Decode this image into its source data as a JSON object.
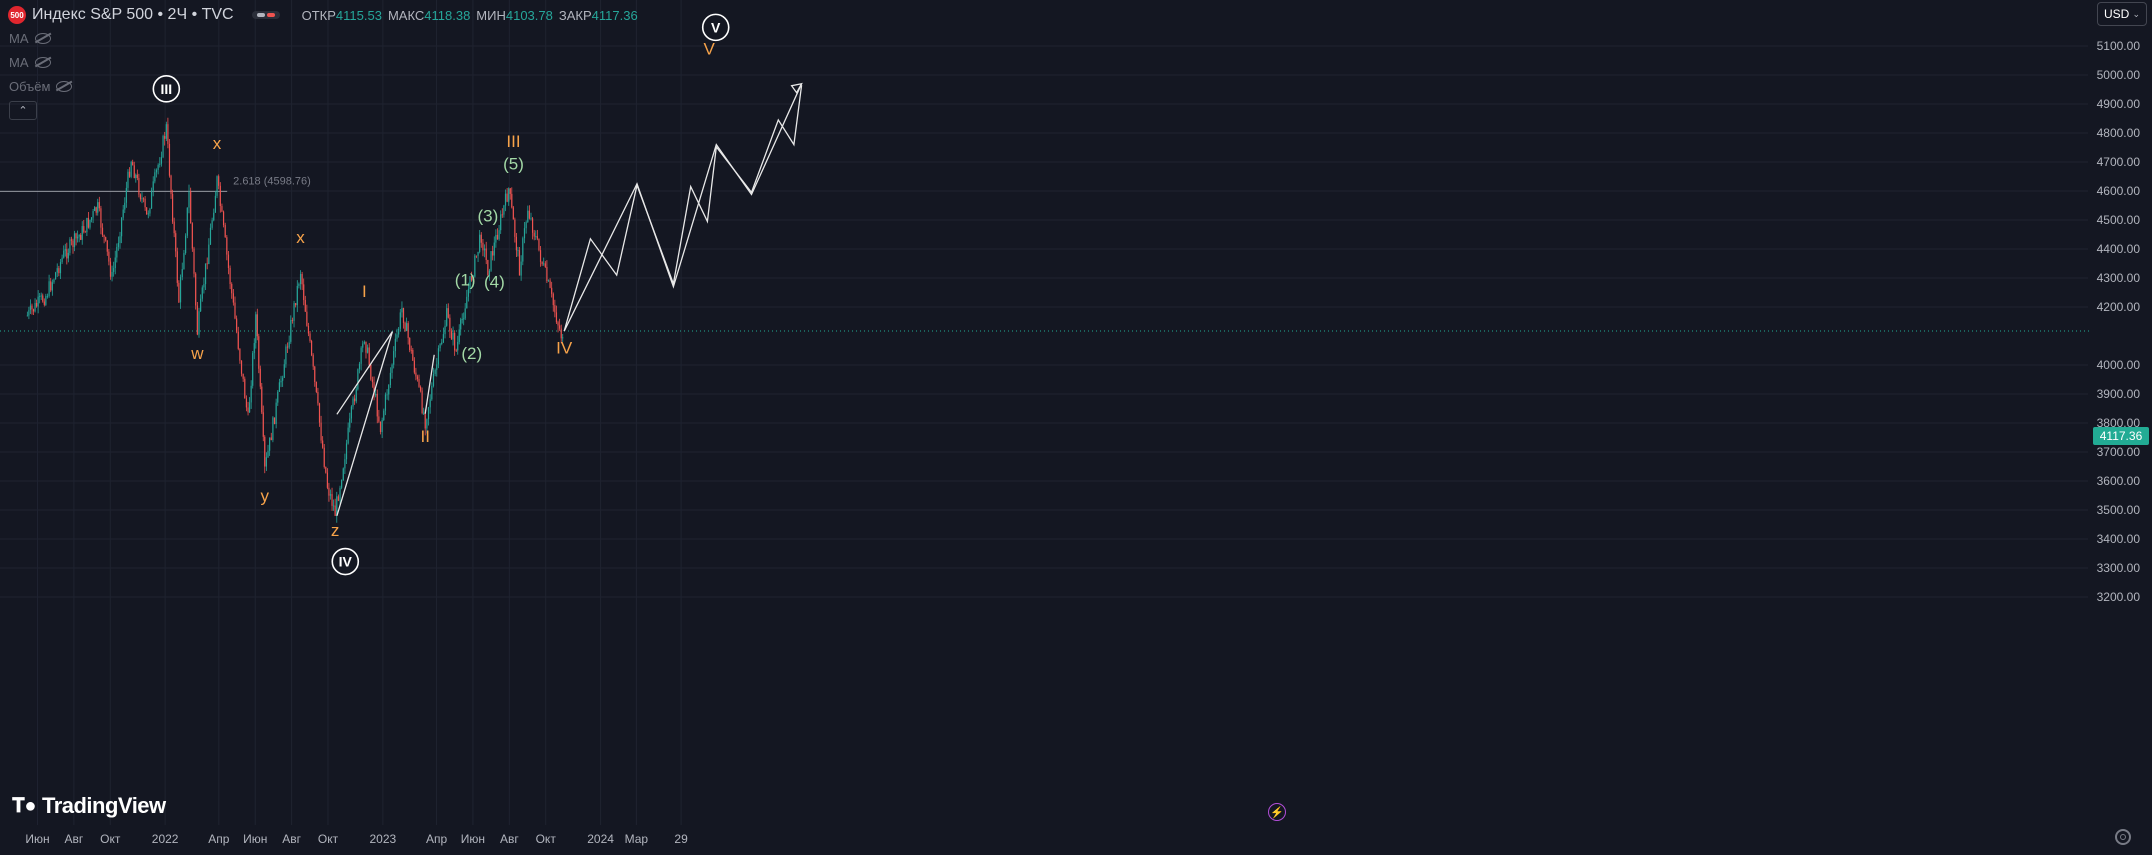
{
  "header": {
    "symbol_badge": "500",
    "title": "Индекс S&P 500 • 2Ч • TVC",
    "ohlc": [
      {
        "key": "ОТКР",
        "value": "4115.53"
      },
      {
        "key": "МАКС",
        "value": "4118.38"
      },
      {
        "key": "МИН",
        "value": "4103.78"
      },
      {
        "key": "ЗАКР",
        "value": "4117.36"
      }
    ]
  },
  "indicators": [
    {
      "label": "MA",
      "icon": "eye-off-icon"
    },
    {
      "label": "MA",
      "icon": "eye-off-icon"
    },
    {
      "label": "Объём",
      "icon": "eye-off-icon"
    }
  ],
  "currency": {
    "label": "USD"
  },
  "branding": {
    "name": "TradingView"
  },
  "colors": {
    "background": "#141722",
    "grid": "#1f2330",
    "up": "#26a69a",
    "down": "#ef5350",
    "wave_orange": "#f7a34a",
    "wave_green": "#a3d9a6",
    "last_price": "#22ab94"
  },
  "chart_data": {
    "type": "candlestick",
    "instrument": "Индекс S&P 500",
    "timeframe": "2Ч",
    "last_price": "4117.36",
    "y_ticks": [
      "5100.00",
      "5000.00",
      "4900.00",
      "4800.00",
      "4700.00",
      "4600.00",
      "4500.00",
      "4400.00",
      "4300.00",
      "4200.00",
      "4000.00",
      "3900.00",
      "3800.00",
      "3700.00",
      "3600.00",
      "3500.00",
      "3400.00",
      "3300.00",
      "3200.00"
    ],
    "x_ticks": [
      "Июн",
      "Авг",
      "Окт",
      "2022",
      "Апр",
      "Июн",
      "Авг",
      "Окт",
      "2023",
      "Апр",
      "Июн",
      "Авг",
      "Окт",
      "2024",
      "Мар",
      "29"
    ],
    "fib_level": {
      "label": "2.618 (4598.76)",
      "price": 4598.76
    },
    "price_path": [
      [
        "2021-05-15",
        4170
      ],
      [
        "2021-06-15",
        4240
      ],
      [
        "2021-07-15",
        4380
      ],
      [
        "2021-08-15",
        4460
      ],
      [
        "2021-09-10",
        4540
      ],
      [
        "2021-10-04",
        4300
      ],
      [
        "2021-11-05",
        4710
      ],
      [
        "2021-12-01",
        4510
      ],
      [
        "2022-01-03",
        4818
      ],
      [
        "2022-01-24",
        4222
      ],
      [
        "2022-02-10",
        4590
      ],
      [
        "2022-02-24",
        4114
      ],
      [
        "2022-03-29",
        4637
      ],
      [
        "2022-05-20",
        3810
      ],
      [
        "2022-06-02",
        4170
      ],
      [
        "2022-06-17",
        3636
      ],
      [
        "2022-08-16",
        4325
      ],
      [
        "2022-09-30",
        3584
      ],
      [
        "2022-10-13",
        3491
      ],
      [
        "2022-12-01",
        4100
      ],
      [
        "2022-12-28",
        3783
      ],
      [
        "2023-02-02",
        4195
      ],
      [
        "2023-03-13",
        3808
      ],
      [
        "2023-04-18",
        4170
      ],
      [
        "2023-05-04",
        4048
      ],
      [
        "2023-05-19",
        4212
      ],
      [
        "2023-06-15",
        4448
      ],
      [
        "2023-06-26",
        4328
      ],
      [
        "2023-07-31",
        4607
      ],
      [
        "2023-08-18",
        4335
      ],
      [
        "2023-09-01",
        4541
      ],
      [
        "2023-10-27",
        4103
      ],
      [
        "2023-11-01",
        4117
      ]
    ],
    "labels": [
      {
        "text": "III",
        "style": "circled",
        "date": "2022-01-03",
        "price": 4935
      },
      {
        "text": "x",
        "style": "orange",
        "date": "2022-03-29",
        "price": 4745
      },
      {
        "text": "w",
        "style": "orange",
        "date": "2022-02-24",
        "price": 4020
      },
      {
        "text": "y",
        "style": "orange",
        "date": "2022-06-17",
        "price": 3530
      },
      {
        "text": "x",
        "style": "orange",
        "date": "2022-08-16",
        "price": 4420
      },
      {
        "text": "z",
        "style": "orange",
        "date": "2022-10-13",
        "price": 3410
      },
      {
        "text": "IV",
        "style": "circled",
        "date": "2022-10-30",
        "price": 3305
      },
      {
        "text": "I",
        "style": "orange",
        "date": "2022-12-01",
        "price": 4235
      },
      {
        "text": "II",
        "style": "orange",
        "date": "2023-03-13",
        "price": 3735
      },
      {
        "text": "(1)",
        "style": "green",
        "date": "2023-05-19",
        "price": 4275
      },
      {
        "text": "(2)",
        "style": "green",
        "date": "2023-05-30",
        "price": 4020
      },
      {
        "text": "(3)",
        "style": "green",
        "date": "2023-06-26",
        "price": 4495
      },
      {
        "text": "(4)",
        "style": "green",
        "date": "2023-07-07",
        "price": 4268
      },
      {
        "text": "(5)",
        "style": "green",
        "date": "2023-08-08",
        "price": 4675
      },
      {
        "text": "III",
        "style": "orange",
        "date": "2023-08-08",
        "price": 4752
      },
      {
        "text": "IV",
        "style": "orange",
        "date": "2023-11-01",
        "price": 4040
      },
      {
        "text": "V",
        "style": "orange",
        "date": "2024-07-01",
        "price": 5070
      },
      {
        "text": "V",
        "style": "circled",
        "date": "2024-07-12",
        "price": 5147
      }
    ],
    "wave_lines": [
      [
        [
          "2022-10-16",
          3830
        ],
        [
          "2023-01-17",
          4115
        ]
      ],
      [
        [
          "2022-10-16",
          3480
        ],
        [
          "2023-01-17",
          4115
        ]
      ],
      [
        [
          "2023-03-13",
          3832
        ],
        [
          "2023-03-28",
          4035
        ]
      ],
      [
        [
          "2023-11-01",
          4117
        ],
        [
          "2023-12-15",
          4435
        ],
        [
          "2024-01-28",
          4310
        ],
        [
          "2024-03-02",
          4620
        ],
        [
          "2024-05-02",
          4280
        ],
        [
          "2024-05-31",
          4615
        ],
        [
          "2024-06-28",
          4495
        ],
        [
          "2024-07-13",
          4752
        ],
        [
          "2024-09-10",
          4595
        ],
        [
          "2024-10-25",
          4845
        ],
        [
          "2024-11-20",
          4760
        ],
        [
          "2024-12-03",
          4965
        ]
      ],
      [
        [
          "2023-11-01",
          4117
        ],
        [
          "2024-03-02",
          4625
        ],
        [
          "2024-05-02",
          4270
        ],
        [
          "2024-07-13",
          4760
        ],
        [
          "2024-09-10",
          4588
        ],
        [
          "2024-12-03",
          4970
        ]
      ]
    ]
  }
}
